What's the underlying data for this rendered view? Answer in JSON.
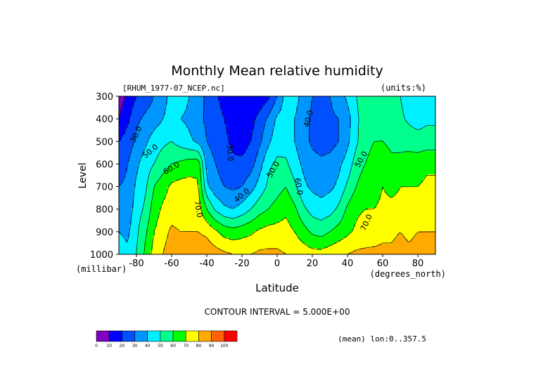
{
  "chart_data": {
    "type": "heatmap",
    "title": "Monthly Mean relative humidity",
    "subtitle_left": "[RHUM_1977-07_NCEP.nc]",
    "subtitle_right": "(units:%)",
    "xlabel": "Latitude",
    "x_units": "(degrees_north)",
    "ylabel": "Level",
    "y_units": "(millibar)",
    "xlim": [
      -90,
      90
    ],
    "ylim": [
      300,
      1000
    ],
    "y_inverted": true,
    "x_ticks": [
      -80,
      -60,
      -40,
      -20,
      0,
      20,
      40,
      60,
      80
    ],
    "x_tick_labels": [
      "-80",
      "-60",
      "-40",
      "-20",
      "0",
      "20",
      "40",
      "60",
      "80"
    ],
    "y_ticks": [
      300,
      400,
      500,
      600,
      700,
      800,
      900,
      1000
    ],
    "y_tick_labels": [
      "300",
      "400",
      "500",
      "600",
      "700",
      "800",
      "900",
      "1000"
    ],
    "contour_note": "CONTOUR INTERVAL = 5.000E+00",
    "footer_note": "(mean) lon:0..357.5",
    "contour_labels": [
      {
        "text": "30.0",
        "lat": -80,
        "lev": 470,
        "rot": -65
      },
      {
        "text": "50.0",
        "lat": -72,
        "lev": 545,
        "rot": -40
      },
      {
        "text": "60.0",
        "lat": -60,
        "lev": 620,
        "rot": -30
      },
      {
        "text": "70.0",
        "lat": -45,
        "lev": 800,
        "rot": 80
      },
      {
        "text": "30.0",
        "lat": -27,
        "lev": 550,
        "rot": 85
      },
      {
        "text": "40.0",
        "lat": -20,
        "lev": 740,
        "rot": -40
      },
      {
        "text": "50.0",
        "lat": -2,
        "lev": 625,
        "rot": -60
      },
      {
        "text": "60.0",
        "lat": 12,
        "lev": 700,
        "rot": 80
      },
      {
        "text": "40.0",
        "lat": 18,
        "lev": 400,
        "rot": -75
      },
      {
        "text": "50.0",
        "lat": 48,
        "lev": 580,
        "rot": -60
      },
      {
        "text": "70.0",
        "lat": 51,
        "lev": 860,
        "rot": -65
      }
    ],
    "colorbar": {
      "boundaries": [
        0,
        10,
        20,
        30,
        40,
        50,
        60,
        70,
        80,
        90,
        100
      ],
      "labels": [
        "0",
        "10",
        "20",
        "30",
        "40",
        "50",
        "60",
        "70",
        "80",
        "90",
        "100"
      ],
      "colors": [
        "#7f00bf",
        "#0000ff",
        "#0050ff",
        "#0096ff",
        "#00f0ff",
        "#00ff8c",
        "#00ff00",
        "#ffff00",
        "#ffaa00",
        "#ff6400",
        "#ff0000"
      ]
    },
    "latitudes": [
      -90,
      -85,
      -80,
      -75,
      -70,
      -65,
      -60,
      -55,
      -50,
      -45,
      -40,
      -35,
      -30,
      -25,
      -20,
      -15,
      -10,
      -5,
      0,
      5,
      10,
      15,
      20,
      25,
      30,
      35,
      40,
      45,
      50,
      55,
      60,
      65,
      70,
      75,
      80,
      85,
      90
    ],
    "levels": [
      300,
      400,
      500,
      600,
      700,
      800,
      900,
      1000
    ],
    "values": [
      [
        5,
        12,
        20,
        25,
        30,
        38,
        42,
        45,
        40,
        35,
        28,
        22,
        16,
        12,
        10,
        10,
        12,
        18,
        30,
        45,
        44,
        36,
        30,
        28,
        30,
        36,
        42,
        50,
        55,
        56,
        58,
        55,
        50,
        45,
        42,
        45,
        45
      ],
      [
        10,
        18,
        28,
        32,
        35,
        40,
        42,
        40,
        38,
        33,
        28,
        24,
        20,
        16,
        12,
        16,
        24,
        32,
        42,
        44,
        40,
        34,
        28,
        26,
        28,
        30,
        36,
        48,
        55,
        56,
        58,
        56,
        52,
        48,
        45,
        48,
        48
      ],
      [
        20,
        25,
        32,
        38,
        45,
        48,
        50,
        46,
        42,
        38,
        30,
        26,
        22,
        18,
        16,
        20,
        28,
        38,
        46,
        45,
        40,
        34,
        28,
        26,
        26,
        30,
        38,
        48,
        58,
        60,
        60,
        58,
        58,
        56,
        55,
        55,
        55
      ],
      [
        25,
        30,
        38,
        45,
        50,
        55,
        60,
        62,
        65,
        66,
        36,
        30,
        25,
        22,
        22,
        26,
        36,
        48,
        52,
        52,
        44,
        38,
        34,
        32,
        34,
        38,
        44,
        55,
        60,
        62,
        65,
        62,
        62,
        65,
        65,
        68,
        68
      ],
      [
        30,
        32,
        42,
        48,
        60,
        66,
        72,
        74,
        74,
        72,
        42,
        34,
        30,
        28,
        30,
        36,
        44,
        52,
        56,
        60,
        52,
        42,
        38,
        36,
        38,
        42,
        52,
        60,
        66,
        66,
        70,
        68,
        70,
        70,
        70,
        72,
        72
      ],
      [
        35,
        34,
        45,
        52,
        65,
        72,
        75,
        75,
        76,
        75,
        60,
        48,
        42,
        40,
        44,
        50,
        56,
        60,
        64,
        68,
        62,
        52,
        46,
        44,
        46,
        52,
        62,
        68,
        70,
        70,
        72,
        72,
        72,
        72,
        74,
        75,
        75
      ],
      [
        40,
        38,
        48,
        58,
        70,
        76,
        82,
        80,
        80,
        80,
        78,
        72,
        66,
        64,
        66,
        68,
        72,
        74,
        74,
        74,
        70,
        64,
        58,
        56,
        60,
        64,
        68,
        72,
        75,
        76,
        78,
        78,
        80,
        78,
        80,
        80,
        80
      ],
      [
        45,
        42,
        50,
        62,
        74,
        80,
        86,
        86,
        86,
        86,
        86,
        84,
        82,
        80,
        80,
        80,
        82,
        82,
        82,
        80,
        78,
        76,
        74,
        74,
        76,
        78,
        80,
        82,
        82,
        82,
        82,
        82,
        84,
        82,
        84,
        84,
        84
      ]
    ]
  }
}
